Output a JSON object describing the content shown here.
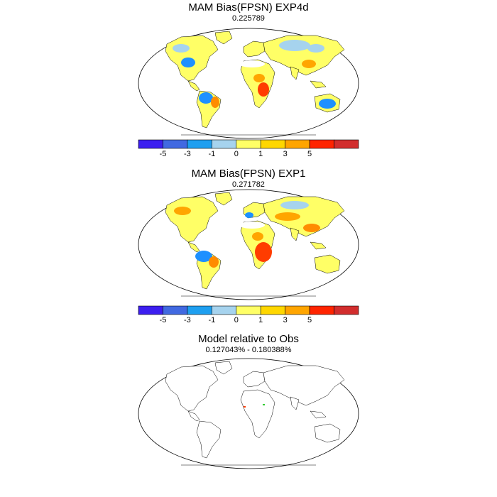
{
  "panels": [
    {
      "title": "MAM Bias(FPSN) EXP4d",
      "subtitle": "0.225789",
      "dominant_colors": [
        "#ffff66",
        "#ffa500",
        "#1e90ff",
        "#a6d3ee"
      ]
    },
    {
      "title": "MAM Bias(FPSN) EXP1",
      "subtitle": "0.271782",
      "dominant_colors": [
        "#ffff66",
        "#ffa500",
        "#1e90ff",
        "#ff3c00"
      ]
    },
    {
      "title": "Model relative to Obs",
      "subtitle": "0.127043% - 0.180388%",
      "dominant_colors": [
        "#ffffff"
      ]
    }
  ],
  "colorbar": {
    "colors": [
      "#3c1ef0",
      "#4169e1",
      "#1e9ff0",
      "#a6d3ee",
      "#ffff66",
      "#ffd700",
      "#ffa500",
      "#ff2400",
      "#d22d2d"
    ],
    "labels": [
      "-5",
      "-3",
      "-1",
      "0",
      "1",
      "3",
      "5"
    ]
  }
}
